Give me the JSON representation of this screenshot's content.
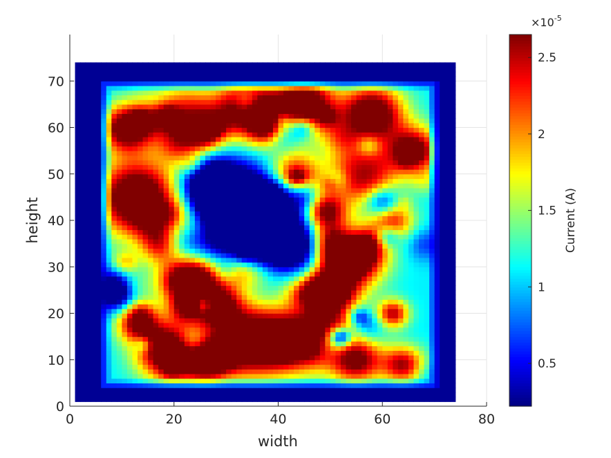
{
  "chart_data": {
    "type": "heatmap",
    "title": "",
    "xlabel": "width",
    "ylabel": "height",
    "xlim": [
      0,
      80
    ],
    "ylim": [
      0,
      80
    ],
    "xticks": [
      0,
      20,
      40,
      60,
      80
    ],
    "yticks": [
      0,
      10,
      20,
      30,
      40,
      50,
      60,
      70
    ],
    "xtick_labels": [
      "0",
      "20",
      "40",
      "60",
      "80"
    ],
    "ytick_labels": [
      "0",
      "10",
      "20",
      "30",
      "40",
      "50",
      "60",
      "70"
    ],
    "grid": true,
    "colormap": "jet",
    "data_extent": {
      "x": [
        1,
        74
      ],
      "y": [
        1,
        74
      ]
    },
    "colorbar": {
      "label": "Current (A)",
      "range": [
        2.2e-06,
        2.65e-05
      ],
      "ticks": [
        0.5,
        1,
        1.5,
        2,
        2.5
      ],
      "tick_labels": [
        "0.5",
        "1",
        "1.5",
        "2",
        "2.5"
      ],
      "exponent_prefix": "×10",
      "exponent": "-5",
      "scale": 1e-05
    },
    "approx_regions": [
      {
        "desc": "outer border",
        "value": 2.3e-06
      },
      {
        "desc": "left hot lobe around (12,45)",
        "value": 2.6e-05
      },
      {
        "desc": "central cold hole around (34,40)",
        "value": 4e-06
      },
      {
        "desc": "bottom band y 5-25",
        "value": 2.3e-05
      },
      {
        "desc": "top band y 55-70",
        "value": 2.4e-05
      },
      {
        "desc": "right-centre hot ridge around (53,32)",
        "value": 2.6e-05
      }
    ]
  }
}
